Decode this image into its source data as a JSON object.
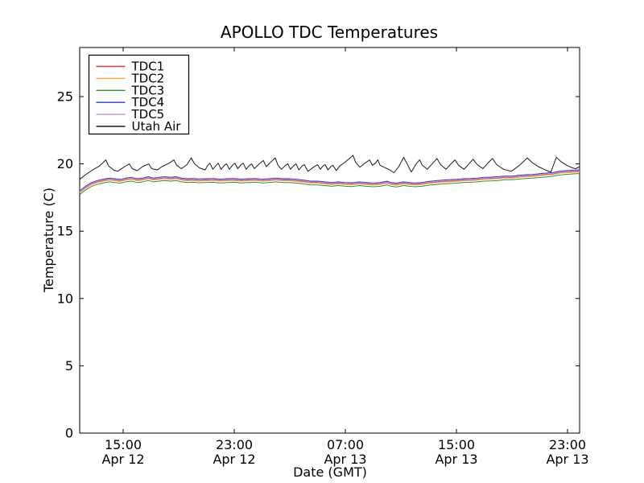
{
  "figure": {
    "background": "#ffffff",
    "axes_border_color": "#000000",
    "tick_color": "#000000"
  },
  "chart_data": {
    "type": "line",
    "title": "APOLLO TDC Temperatures",
    "xlabel": "Date (GMT)",
    "ylabel": "Temperature (C)",
    "grid": false,
    "x_unit": "hours since Apr 12 00:00 GMT",
    "xlim": [
      11.87,
      47.87
    ],
    "ylim": [
      0,
      28.65
    ],
    "y_ticks": [
      0,
      5,
      10,
      15,
      20,
      25
    ],
    "x_ticks": [
      {
        "t": 15,
        "time": "15:00",
        "date": "Apr 12"
      },
      {
        "t": 23,
        "time": "23:00",
        "date": "Apr 12"
      },
      {
        "t": 31,
        "time": "07:00",
        "date": "Apr 13"
      },
      {
        "t": 39,
        "time": "15:00",
        "date": "Apr 13"
      },
      {
        "t": 47,
        "time": "23:00",
        "date": "Apr 13"
      }
    ],
    "legend": {
      "position": "upper left",
      "border_color": "#000000",
      "background": "#ffffff"
    },
    "base_curves": {
      "tdc": [
        [
          11.87,
          18.0
        ],
        [
          12.3,
          18.35
        ],
        [
          12.7,
          18.6
        ],
        [
          13.1,
          18.75
        ],
        [
          13.5,
          18.85
        ],
        [
          14.0,
          18.95
        ],
        [
          14.4,
          18.9
        ],
        [
          14.8,
          18.85
        ],
        [
          15.2,
          18.95
        ],
        [
          15.6,
          19.0
        ],
        [
          16.0,
          18.9
        ],
        [
          16.4,
          18.95
        ],
        [
          16.8,
          19.05
        ],
        [
          17.2,
          18.95
        ],
        [
          17.6,
          19.0
        ],
        [
          18.0,
          19.05
        ],
        [
          18.4,
          19.0
        ],
        [
          18.8,
          19.05
        ],
        [
          19.2,
          18.95
        ],
        [
          19.6,
          18.9
        ],
        [
          20.0,
          18.92
        ],
        [
          20.5,
          18.88
        ],
        [
          21.0,
          18.9
        ],
        [
          21.5,
          18.92
        ],
        [
          22.0,
          18.87
        ],
        [
          22.5,
          18.9
        ],
        [
          23.0,
          18.92
        ],
        [
          23.5,
          18.87
        ],
        [
          24.0,
          18.9
        ],
        [
          24.5,
          18.92
        ],
        [
          25.0,
          18.87
        ],
        [
          25.5,
          18.9
        ],
        [
          26.0,
          18.95
        ],
        [
          26.5,
          18.9
        ],
        [
          27.0,
          18.9
        ],
        [
          27.5,
          18.85
        ],
        [
          28.0,
          18.8
        ],
        [
          28.5,
          18.72
        ],
        [
          29.0,
          18.72
        ],
        [
          29.5,
          18.67
        ],
        [
          30.0,
          18.62
        ],
        [
          30.5,
          18.67
        ],
        [
          31.0,
          18.62
        ],
        [
          31.5,
          18.6
        ],
        [
          32.0,
          18.67
        ],
        [
          32.5,
          18.62
        ],
        [
          33.0,
          18.58
        ],
        [
          33.5,
          18.62
        ],
        [
          34.0,
          18.72
        ],
        [
          34.3,
          18.62
        ],
        [
          34.7,
          18.57
        ],
        [
          35.2,
          18.67
        ],
        [
          35.6,
          18.62
        ],
        [
          36.0,
          18.58
        ],
        [
          36.5,
          18.62
        ],
        [
          37.0,
          18.7
        ],
        [
          37.5,
          18.75
        ],
        [
          38.0,
          18.8
        ],
        [
          38.5,
          18.82
        ],
        [
          39.0,
          18.85
        ],
        [
          39.5,
          18.9
        ],
        [
          40.0,
          18.92
        ],
        [
          40.5,
          18.95
        ],
        [
          41.0,
          19.0
        ],
        [
          41.5,
          19.02
        ],
        [
          42.0,
          19.05
        ],
        [
          42.5,
          19.1
        ],
        [
          43.0,
          19.1
        ],
        [
          43.5,
          19.15
        ],
        [
          44.0,
          19.2
        ],
        [
          44.5,
          19.22
        ],
        [
          45.0,
          19.27
        ],
        [
          45.5,
          19.32
        ],
        [
          46.0,
          19.37
        ],
        [
          46.4,
          19.45
        ],
        [
          46.8,
          19.5
        ],
        [
          47.2,
          19.52
        ],
        [
          47.6,
          19.55
        ],
        [
          47.87,
          19.55
        ]
      ]
    },
    "series": [
      {
        "name": "TDC1",
        "color": "#e63333",
        "base": "tdc",
        "offset": -0.11
      },
      {
        "name": "TDC2",
        "color": "#ffa640",
        "base": "tdc",
        "offset": -0.15
      },
      {
        "name": "TDC3",
        "color": "#2e8f2e",
        "base": "tdc",
        "offset": -0.28
      },
      {
        "name": "TDC4",
        "color": "#3333e6",
        "base": "tdc",
        "offset": 0
      },
      {
        "name": "TDC5",
        "color": "#bf8fd9",
        "base": "tdc",
        "offset": -0.06
      },
      {
        "name": "Utah Air",
        "color": "#1a1a1a",
        "points": [
          [
            11.87,
            18.85
          ],
          [
            12.3,
            19.2
          ],
          [
            12.8,
            19.55
          ],
          [
            13.3,
            19.85
          ],
          [
            13.75,
            20.3
          ],
          [
            13.95,
            19.85
          ],
          [
            14.3,
            19.55
          ],
          [
            14.6,
            19.45
          ],
          [
            15.1,
            19.8
          ],
          [
            15.45,
            20.0
          ],
          [
            15.65,
            19.65
          ],
          [
            16.0,
            19.5
          ],
          [
            16.4,
            19.8
          ],
          [
            16.85,
            20.0
          ],
          [
            17.05,
            19.65
          ],
          [
            17.45,
            19.55
          ],
          [
            17.8,
            19.8
          ],
          [
            18.3,
            20.05
          ],
          [
            18.65,
            20.3
          ],
          [
            18.85,
            19.9
          ],
          [
            19.2,
            19.65
          ],
          [
            19.6,
            19.95
          ],
          [
            19.9,
            20.45
          ],
          [
            20.15,
            20.0
          ],
          [
            20.5,
            19.7
          ],
          [
            20.9,
            19.55
          ],
          [
            21.1,
            19.9
          ],
          [
            21.25,
            20.05
          ],
          [
            21.45,
            19.6
          ],
          [
            21.7,
            19.9
          ],
          [
            21.85,
            20.05
          ],
          [
            22.05,
            19.6
          ],
          [
            22.3,
            19.9
          ],
          [
            22.45,
            20.0
          ],
          [
            22.65,
            19.6
          ],
          [
            22.9,
            19.95
          ],
          [
            23.05,
            20.05
          ],
          [
            23.25,
            19.65
          ],
          [
            23.5,
            19.95
          ],
          [
            23.65,
            20.05
          ],
          [
            23.85,
            19.6
          ],
          [
            24.1,
            19.9
          ],
          [
            24.25,
            20.0
          ],
          [
            24.45,
            19.65
          ],
          [
            24.8,
            20.0
          ],
          [
            25.1,
            20.25
          ],
          [
            25.3,
            19.8
          ],
          [
            25.6,
            20.1
          ],
          [
            25.95,
            20.45
          ],
          [
            26.15,
            19.9
          ],
          [
            26.4,
            19.6
          ],
          [
            26.7,
            19.9
          ],
          [
            26.85,
            20.0
          ],
          [
            27.05,
            19.6
          ],
          [
            27.3,
            19.9
          ],
          [
            27.45,
            20.0
          ],
          [
            27.65,
            19.55
          ],
          [
            27.9,
            19.85
          ],
          [
            28.05,
            19.95
          ],
          [
            28.3,
            19.45
          ],
          [
            28.7,
            19.75
          ],
          [
            29.0,
            19.95
          ],
          [
            29.2,
            19.6
          ],
          [
            29.4,
            19.85
          ],
          [
            29.55,
            19.95
          ],
          [
            29.75,
            19.55
          ],
          [
            29.95,
            19.8
          ],
          [
            30.1,
            19.9
          ],
          [
            30.35,
            19.5
          ],
          [
            30.6,
            19.85
          ],
          [
            30.95,
            20.1
          ],
          [
            31.3,
            20.4
          ],
          [
            31.55,
            20.65
          ],
          [
            31.75,
            20.1
          ],
          [
            32.05,
            19.75
          ],
          [
            32.4,
            20.05
          ],
          [
            32.75,
            20.3
          ],
          [
            32.95,
            19.9
          ],
          [
            33.15,
            20.05
          ],
          [
            33.35,
            20.3
          ],
          [
            33.5,
            19.9
          ],
          [
            33.8,
            19.75
          ],
          [
            34.2,
            19.55
          ],
          [
            34.5,
            19.35
          ],
          [
            34.85,
            19.8
          ],
          [
            35.2,
            20.5
          ],
          [
            35.45,
            20.0
          ],
          [
            35.75,
            19.4
          ],
          [
            36.1,
            20.0
          ],
          [
            36.35,
            20.3
          ],
          [
            36.55,
            19.9
          ],
          [
            36.9,
            19.6
          ],
          [
            37.25,
            20.0
          ],
          [
            37.6,
            20.4
          ],
          [
            37.85,
            19.95
          ],
          [
            38.25,
            19.6
          ],
          [
            38.6,
            20.0
          ],
          [
            38.9,
            20.3
          ],
          [
            39.15,
            19.9
          ],
          [
            39.55,
            19.6
          ],
          [
            39.9,
            20.0
          ],
          [
            40.2,
            20.35
          ],
          [
            40.5,
            19.95
          ],
          [
            40.9,
            19.65
          ],
          [
            41.3,
            20.1
          ],
          [
            41.6,
            20.4
          ],
          [
            41.9,
            19.95
          ],
          [
            42.4,
            19.6
          ],
          [
            42.95,
            19.45
          ],
          [
            43.55,
            19.9
          ],
          [
            44.1,
            20.45
          ],
          [
            44.45,
            20.1
          ],
          [
            44.9,
            19.8
          ],
          [
            45.4,
            19.55
          ],
          [
            45.8,
            19.4
          ],
          [
            46.2,
            20.5
          ],
          [
            46.55,
            20.15
          ],
          [
            46.95,
            19.9
          ],
          [
            47.35,
            19.7
          ],
          [
            47.6,
            19.65
          ],
          [
            47.87,
            19.8
          ]
        ]
      }
    ]
  }
}
